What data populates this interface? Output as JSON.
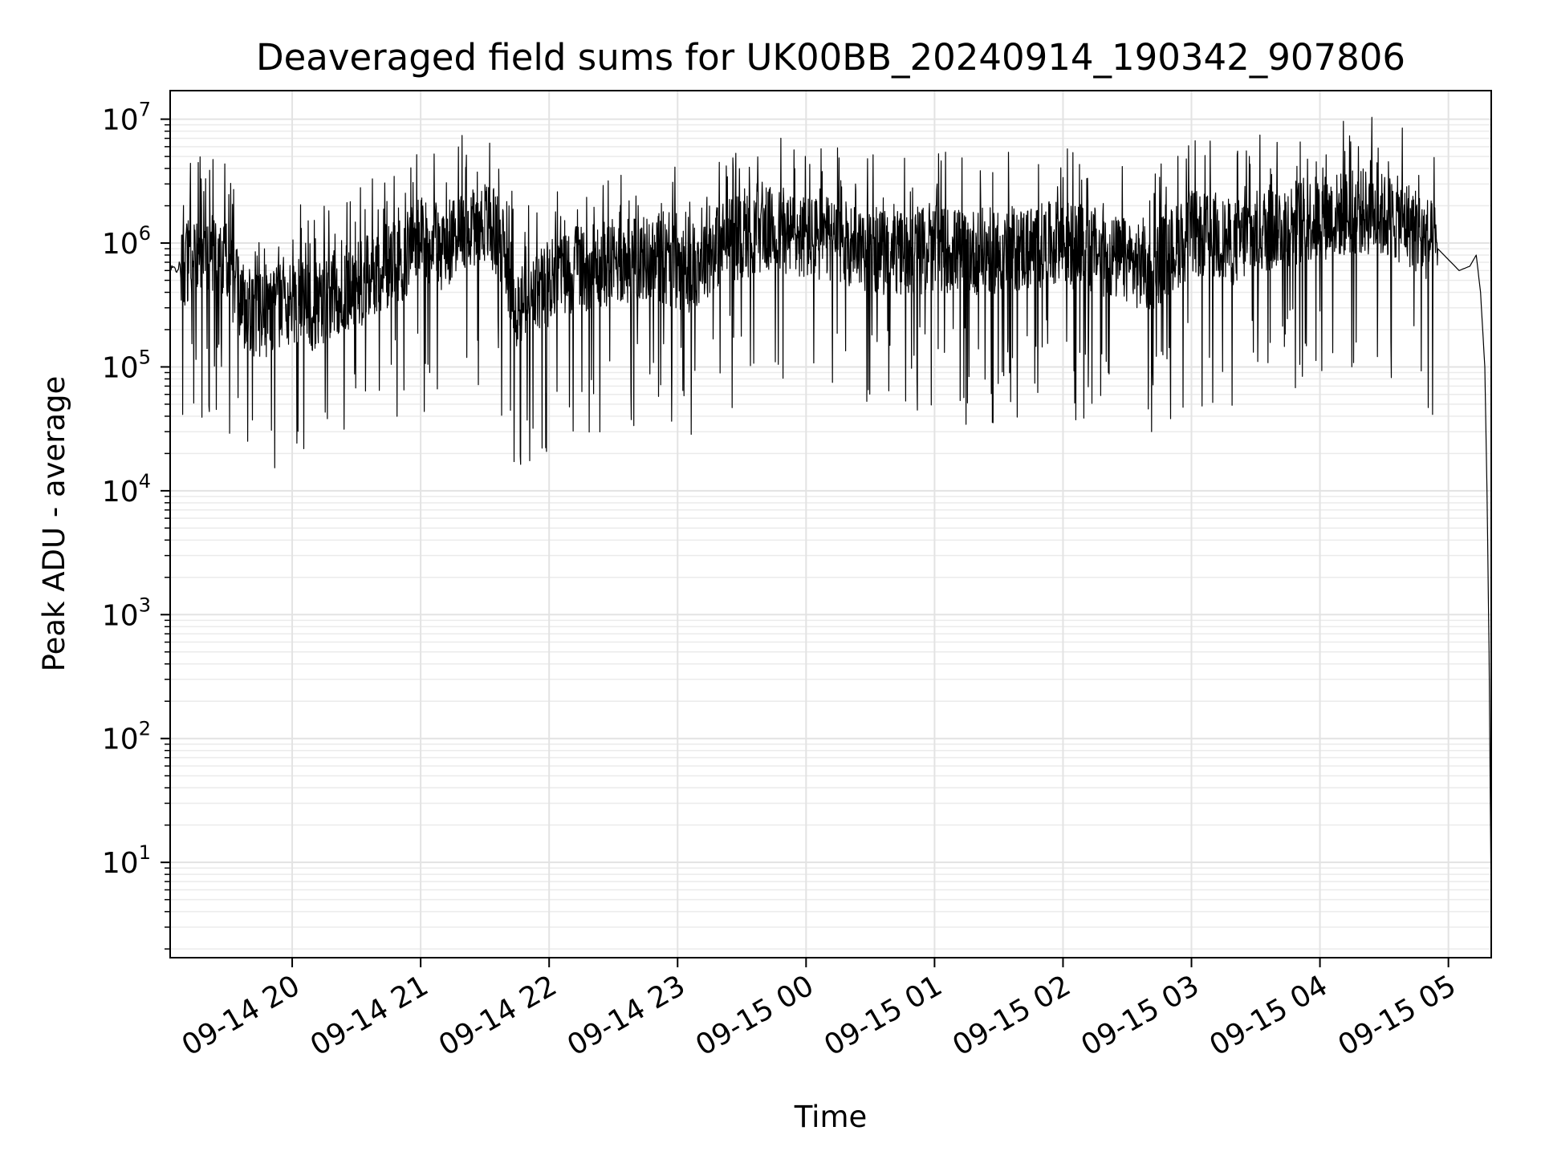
{
  "chart_data": {
    "type": "line",
    "title": "Deaveraged field sums for UK00BB_20240914_190342_907806",
    "xlabel": "Time",
    "ylabel": "Peak ADU - average",
    "yscale": "log",
    "ylim": [
      1.7,
      17000000
    ],
    "xlim": [
      "2024-09-14 19:03",
      "2024-09-15 05:20"
    ],
    "x_ticks": [
      {
        "value": "2024-09-14 20:00",
        "label": "09-14 20"
      },
      {
        "value": "2024-09-14 21:00",
        "label": "09-14 21"
      },
      {
        "value": "2024-09-14 22:00",
        "label": "09-14 22"
      },
      {
        "value": "2024-09-14 23:00",
        "label": "09-14 23"
      },
      {
        "value": "2024-09-15 00:00",
        "label": "09-15 00"
      },
      {
        "value": "2024-09-15 01:00",
        "label": "09-15 01"
      },
      {
        "value": "2024-09-15 02:00",
        "label": "09-15 02"
      },
      {
        "value": "2024-09-15 03:00",
        "label": "09-15 03"
      },
      {
        "value": "2024-09-15 04:00",
        "label": "09-15 04"
      },
      {
        "value": "2024-09-15 05:00",
        "label": "09-15 05"
      }
    ],
    "y_ticks": [
      {
        "value": 10,
        "base": "10",
        "exp": "1"
      },
      {
        "value": 100,
        "base": "10",
        "exp": "2"
      },
      {
        "value": 1000,
        "base": "10",
        "exp": "3"
      },
      {
        "value": 10000,
        "base": "10",
        "exp": "4"
      },
      {
        "value": 100000,
        "base": "10",
        "exp": "5"
      },
      {
        "value": 1000000,
        "base": "10",
        "exp": "6"
      },
      {
        "value": 10000000,
        "base": "10",
        "exp": "7"
      }
    ],
    "grid": "major and minor",
    "legend": "none",
    "line_color": "#000000",
    "series": [
      {
        "x": [
          "2024-09-14 19:03",
          "2024-09-14 19:08",
          "2024-09-14 19:13",
          "2024-09-14 19:18",
          "2024-09-14 19:23",
          "2024-09-14 19:28",
          "2024-09-14 19:33",
          "2024-09-14 19:38",
          "2024-09-14 19:45",
          "2024-09-14 19:52",
          "2024-09-14 20:00",
          "2024-09-14 20:10",
          "2024-09-14 20:20",
          "2024-09-14 20:30",
          "2024-09-14 20:40",
          "2024-09-14 20:50",
          "2024-09-14 21:00",
          "2024-09-14 21:10",
          "2024-09-14 21:20",
          "2024-09-14 21:30",
          "2024-09-14 21:38",
          "2024-09-14 21:45",
          "2024-09-14 21:55",
          "2024-09-14 22:10",
          "2024-09-14 22:30",
          "2024-09-14 22:45",
          "2024-09-14 22:55",
          "2024-09-14 23:05",
          "2024-09-14 23:20",
          "2024-09-14 23:40",
          "2024-09-15 00:00",
          "2024-09-15 00:20",
          "2024-09-15 00:40",
          "2024-09-15 01:00",
          "2024-09-15 01:20",
          "2024-09-15 01:40",
          "2024-09-15 02:00",
          "2024-09-15 02:20",
          "2024-09-15 02:40",
          "2024-09-15 03:00",
          "2024-09-15 03:20",
          "2024-09-15 03:40",
          "2024-09-15 04:00",
          "2024-09-15 04:20",
          "2024-09-15 04:40",
          "2024-09-15 04:55",
          "2024-09-15 05:05",
          "2024-09-15 05:10",
          "2024-09-15 05:13",
          "2024-09-15 05:15",
          "2024-09-15 05:17",
          "2024-09-15 05:18",
          "2024-09-15 05:19",
          "2024-09-15 05:20"
        ],
        "y": [
          600000,
          650000,
          800000,
          900000,
          850000,
          750000,
          450000,
          300000,
          250000,
          300000,
          350000,
          300000,
          400000,
          450000,
          600000,
          700000,
          1100000,
          900000,
          1300000,
          1500000,
          1000000,
          300000,
          400000,
          600000,
          700000,
          750000,
          700000,
          600000,
          1000000,
          1300000,
          1100000,
          1000000,
          800000,
          900000,
          850000,
          900000,
          1000000,
          800000,
          600000,
          1200000,
          1000000,
          1400000,
          1600000,
          1800000,
          1500000,
          900000,
          600000,
          650000,
          800000,
          400000,
          100000,
          10000,
          500,
          4
        ]
      }
    ]
  }
}
